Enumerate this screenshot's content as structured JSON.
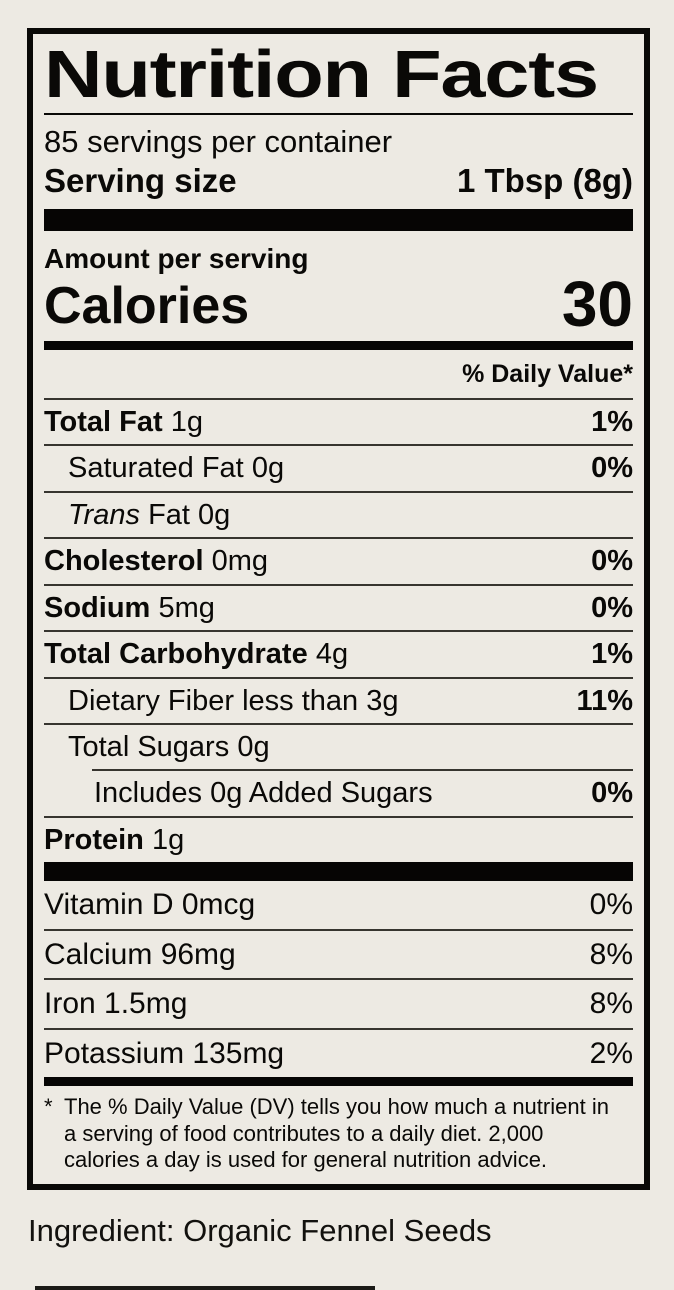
{
  "colors": {
    "background": "#edeae3",
    "ink": "#0a0907"
  },
  "label": {
    "title": "Nutrition Facts",
    "servings_per_container": "85 servings per container",
    "serving_size_label": "Serving size",
    "serving_size_value": "1 Tbsp (8g)",
    "amount_per_serving": "Amount per serving",
    "calories_label": "Calories",
    "calories_value": "30",
    "dv_header": "% Daily Value*",
    "nutrients": [
      {
        "name": "Total Fat",
        "amount": "1g",
        "dv": "1%"
      },
      {
        "name": "Saturated Fat",
        "amount": "0g",
        "dv": "0%"
      },
      {
        "name": "Trans",
        "amount": "Fat 0g",
        "dv": ""
      },
      {
        "name": "Cholesterol",
        "amount": "0mg",
        "dv": "0%"
      },
      {
        "name": "Sodium",
        "amount": "5mg",
        "dv": "0%"
      },
      {
        "name": "Total Carbohydrate",
        "amount": "4g",
        "dv": "1%"
      },
      {
        "name": "Dietary Fiber",
        "amount": "less than 3g",
        "dv": "11%"
      },
      {
        "name": "Total Sugars",
        "amount": "0g",
        "dv": ""
      },
      {
        "name": "Includes 0g Added Sugars",
        "amount": "",
        "dv": "0%"
      },
      {
        "name": "Protein",
        "amount": "1g",
        "dv": ""
      }
    ],
    "micronutrients": [
      {
        "label": "Vitamin D 0mcg",
        "dv": "0%"
      },
      {
        "label": "Calcium 96mg",
        "dv": "8%"
      },
      {
        "label": "Iron 1.5mg",
        "dv": "8%"
      },
      {
        "label": "Potassium 135mg",
        "dv": "2%"
      }
    ],
    "footnote_marker": "*",
    "footnote_text": "The % Daily Value (DV) tells you how much a nutrient in a serving of food contributes to a daily diet. 2,000 calories a day is used for general nutrition advice."
  },
  "ingredient_line": "Ingredient: Organic Fennel Seeds"
}
